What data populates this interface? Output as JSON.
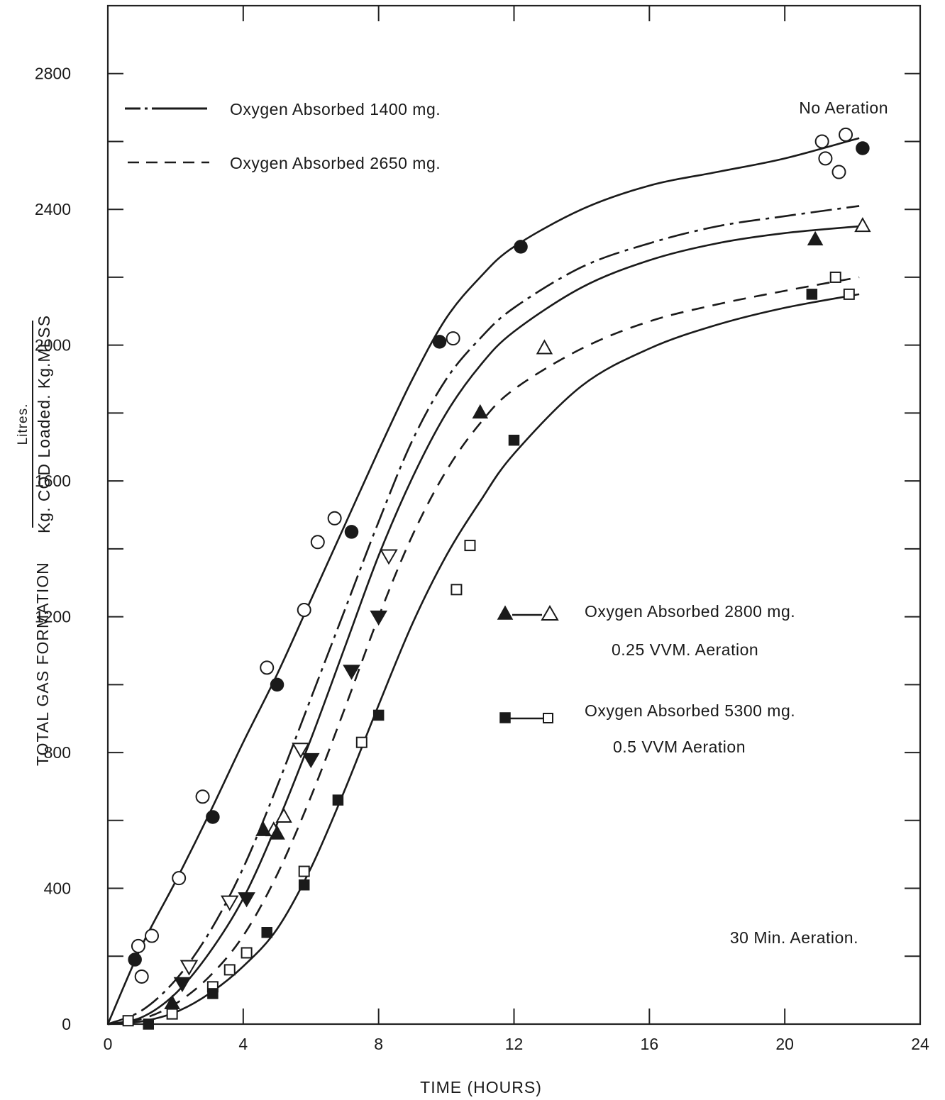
{
  "chart_data": {
    "type": "line",
    "title": "",
    "xlabel": "TIME (HOURS)",
    "ylabel_main": "TOTAL GAS FORMATION",
    "ylabel_unit_numerator": "Litres.",
    "ylabel_unit_denominator": "Kg. COD Loaded. Kg.MLSS",
    "xlim": [
      0,
      24
    ],
    "ylim": [
      0,
      3000
    ],
    "x_ticks": [
      0,
      4,
      8,
      12,
      16,
      20,
      24
    ],
    "y_ticks": [
      0,
      400,
      800,
      1200,
      1600,
      2000,
      2400,
      2800
    ],
    "grid": false,
    "legend_lines": [
      {
        "style": "dash-dot",
        "label": "Oxygen  Absorbed  1400  mg."
      },
      {
        "style": "dashed",
        "label": "Oxygen  Absorbed  2650  mg."
      }
    ],
    "legend_markers": [
      {
        "markers": "triangle",
        "line1": "Oxygen  Absorbed  2800  mg.",
        "line2": "0.25  VVM.  Aeration"
      },
      {
        "markers": "square",
        "line1": "Oxygen  Absorbed  5300  mg.",
        "line2": "0.5  VVM  Aeration"
      }
    ],
    "annotations": {
      "top_right": "No  Aeration",
      "bottom_right": "30  Min.  Aeration."
    },
    "series": [
      {
        "style": "solid",
        "marker": "circle",
        "curve": [
          [
            0,
            0
          ],
          [
            1,
            230
          ],
          [
            2,
            420
          ],
          [
            3,
            620
          ],
          [
            4,
            830
          ],
          [
            5,
            1030
          ],
          [
            6,
            1250
          ],
          [
            7,
            1470
          ],
          [
            8,
            1690
          ],
          [
            9,
            1900
          ],
          [
            10,
            2080
          ],
          [
            11,
            2200
          ],
          [
            12,
            2290
          ],
          [
            14,
            2400
          ],
          [
            16,
            2470
          ],
          [
            18,
            2510
          ],
          [
            20,
            2550
          ],
          [
            22.2,
            2610
          ]
        ],
        "points_open": [
          [
            0.9,
            230
          ],
          [
            1.0,
            140
          ],
          [
            1.3,
            260
          ],
          [
            2.1,
            430
          ],
          [
            2.8,
            670
          ],
          [
            4.7,
            1050
          ],
          [
            5.8,
            1220
          ],
          [
            6.2,
            1420
          ],
          [
            6.7,
            1490
          ],
          [
            10.2,
            2020
          ],
          [
            21.1,
            2600
          ],
          [
            21.2,
            2550
          ],
          [
            21.6,
            2510
          ],
          [
            21.8,
            2620
          ]
        ],
        "points_filled": [
          [
            0.8,
            190
          ],
          [
            3.1,
            610
          ],
          [
            5.0,
            1000
          ],
          [
            7.2,
            1450
          ],
          [
            9.8,
            2010
          ],
          [
            12.2,
            2290
          ],
          [
            22.3,
            2580
          ]
        ]
      },
      {
        "style": "dash-dot",
        "marker": "inverted-triangle",
        "curve": [
          [
            0,
            0
          ],
          [
            1,
            40
          ],
          [
            2,
            130
          ],
          [
            3,
            270
          ],
          [
            4,
            460
          ],
          [
            5,
            700
          ],
          [
            6,
            960
          ],
          [
            7,
            1220
          ],
          [
            8,
            1480
          ],
          [
            9,
            1720
          ],
          [
            10,
            1900
          ],
          [
            11,
            2020
          ],
          [
            12,
            2110
          ],
          [
            14,
            2230
          ],
          [
            16,
            2300
          ],
          [
            18,
            2350
          ],
          [
            20,
            2380
          ],
          [
            22.2,
            2410
          ]
        ],
        "points_open": [
          [
            2.4,
            170
          ],
          [
            3.6,
            360
          ],
          [
            5.7,
            810
          ],
          [
            8.3,
            1380
          ]
        ],
        "points_filled": [
          [
            2.2,
            120
          ],
          [
            4.1,
            370
          ],
          [
            6.0,
            780
          ],
          [
            7.2,
            1040
          ],
          [
            8.0,
            1200
          ]
        ]
      },
      {
        "style": "solid",
        "marker": "triangle",
        "curve": [
          [
            0,
            0
          ],
          [
            1,
            20
          ],
          [
            2,
            90
          ],
          [
            3,
            210
          ],
          [
            4,
            370
          ],
          [
            5,
            590
          ],
          [
            6,
            840
          ],
          [
            7,
            1110
          ],
          [
            8,
            1380
          ],
          [
            9,
            1610
          ],
          [
            10,
            1800
          ],
          [
            11,
            1940
          ],
          [
            12,
            2040
          ],
          [
            14,
            2170
          ],
          [
            16,
            2250
          ],
          [
            18,
            2300
          ],
          [
            20,
            2330
          ],
          [
            22.2,
            2350
          ]
        ],
        "points_open": [
          [
            4.9,
            570
          ],
          [
            5.2,
            610
          ],
          [
            12.9,
            1990
          ],
          [
            22.3,
            2350
          ]
        ],
        "points_filled": [
          [
            1.9,
            60
          ],
          [
            4.6,
            570
          ],
          [
            5.0,
            560
          ],
          [
            11.0,
            1800
          ],
          [
            20.9,
            2310
          ]
        ]
      },
      {
        "style": "dashed",
        "marker": "none",
        "curve": [
          [
            0,
            0
          ],
          [
            1,
            15
          ],
          [
            2,
            60
          ],
          [
            3,
            140
          ],
          [
            4,
            260
          ],
          [
            5,
            440
          ],
          [
            6,
            670
          ],
          [
            7,
            930
          ],
          [
            8,
            1200
          ],
          [
            9,
            1440
          ],
          [
            10,
            1630
          ],
          [
            11,
            1770
          ],
          [
            12,
            1870
          ],
          [
            14,
            1990
          ],
          [
            16,
            2070
          ],
          [
            18,
            2120
          ],
          [
            20,
            2160
          ],
          [
            22.2,
            2200
          ]
        ],
        "points_open": [],
        "points_filled": []
      },
      {
        "style": "solid",
        "marker": "square",
        "curve": [
          [
            0,
            0
          ],
          [
            1,
            8
          ],
          [
            2,
            35
          ],
          [
            3,
            90
          ],
          [
            4,
            170
          ],
          [
            5,
            280
          ],
          [
            6,
            460
          ],
          [
            7,
            690
          ],
          [
            8,
            940
          ],
          [
            9,
            1180
          ],
          [
            10,
            1380
          ],
          [
            11,
            1540
          ],
          [
            12,
            1680
          ],
          [
            14,
            1880
          ],
          [
            16,
            1990
          ],
          [
            18,
            2060
          ],
          [
            20,
            2110
          ],
          [
            22.2,
            2150
          ]
        ],
        "points_open": [
          [
            0.6,
            10
          ],
          [
            1.9,
            30
          ],
          [
            3.1,
            110
          ],
          [
            3.6,
            160
          ],
          [
            4.1,
            210
          ],
          [
            5.8,
            450
          ],
          [
            7.5,
            830
          ],
          [
            10.3,
            1280
          ],
          [
            10.7,
            1410
          ],
          [
            21.5,
            2200
          ],
          [
            21.9,
            2150
          ]
        ],
        "points_filled": [
          [
            1.2,
            0
          ],
          [
            3.1,
            90
          ],
          [
            4.7,
            270
          ],
          [
            5.8,
            410
          ],
          [
            6.8,
            660
          ],
          [
            8.0,
            910
          ],
          [
            12.0,
            1720
          ],
          [
            20.8,
            2150
          ]
        ]
      }
    ]
  }
}
